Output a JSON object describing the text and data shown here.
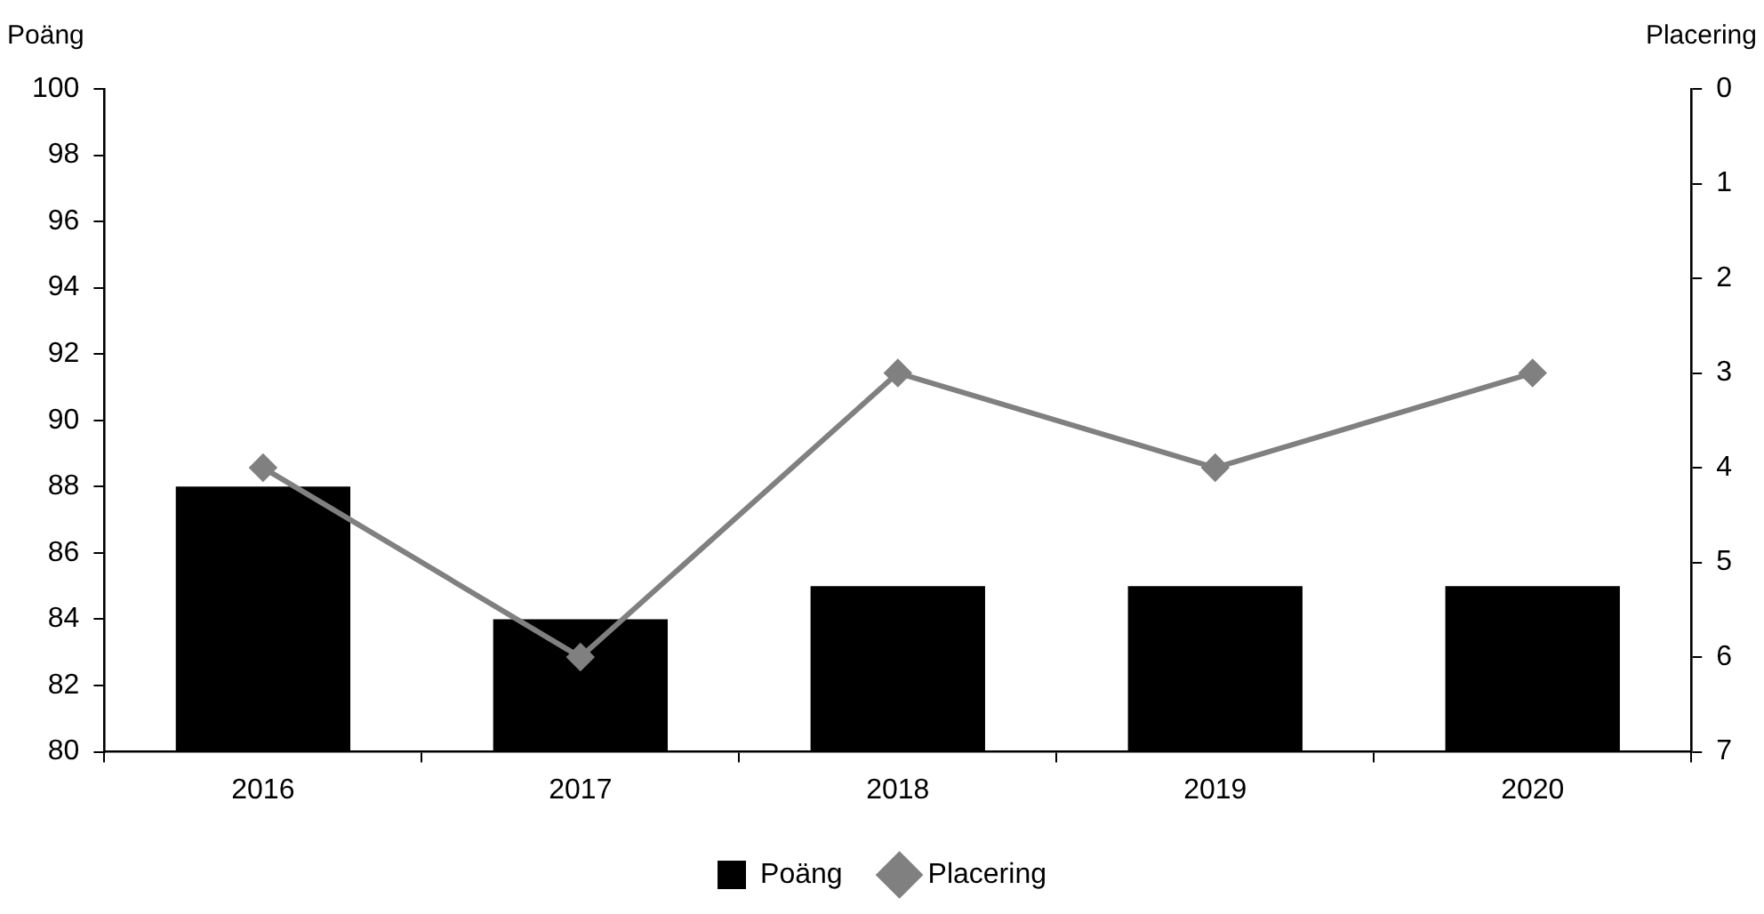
{
  "chart_data": {
    "type": "bar",
    "ylabel": "Poäng",
    "y2label": "Placering",
    "categories": [
      "2016",
      "2017",
      "2018",
      "2019",
      "2020"
    ],
    "series": [
      {
        "name": "Poäng",
        "color": "#000000",
        "values": [
          88,
          84,
          85,
          85,
          85
        ]
      },
      {
        "name": "Placering",
        "type": "line",
        "axis": "y2",
        "color": "#808080",
        "marker": "diamond",
        "values": [
          4,
          6,
          3,
          4,
          3
        ]
      }
    ],
    "ylim": [
      80,
      100
    ],
    "yticks": [
      80,
      82,
      84,
      86,
      88,
      90,
      92,
      94,
      96,
      98,
      100
    ],
    "y2lim": [
      7,
      0
    ],
    "y2ticks": [
      0,
      1,
      2,
      3,
      4,
      5,
      6,
      7
    ],
    "grid": false,
    "legend": "bottom"
  }
}
